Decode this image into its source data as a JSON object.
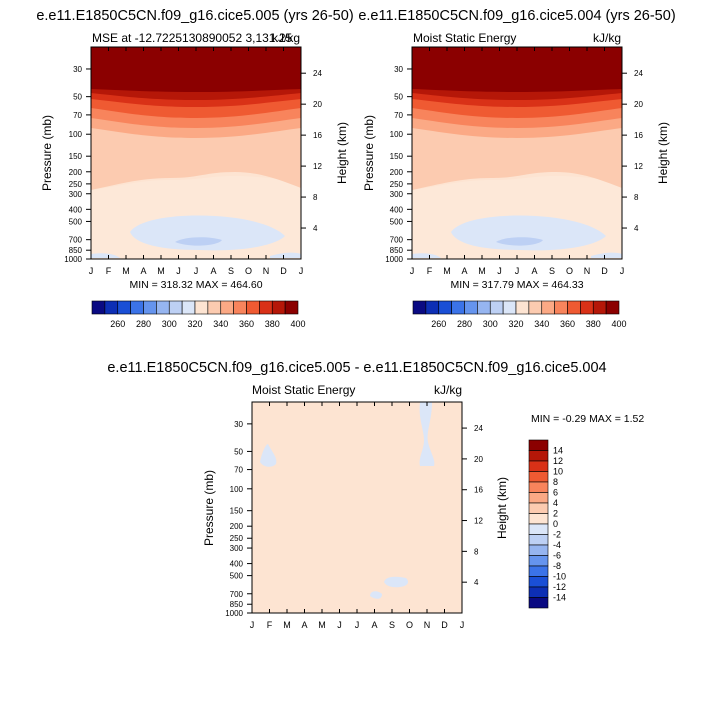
{
  "panels": [
    {
      "title": "e.e11.E1850C5CN.f09_g16.cice5.005 (yrs 26-50)",
      "left_label": "MSE at -12.7225130890052 3,131.25",
      "right_label": "kJ/kg",
      "minmax": "MIN = 318.32 MAX = 464.60"
    },
    {
      "title": "e.e11.E1850C5CN.f09_g16.cice5.004 (yrs 26-50)",
      "left_label": "Moist Static Energy",
      "right_label": "kJ/kg",
      "minmax": "MIN = 317.79 MAX = 464.33"
    },
    {
      "title": "e.e11.E1850C5CN.f09_g16.cice5.005 - e.e11.E1850C5CN.f09_g16.cice5.004",
      "left_label": "Moist Static Energy",
      "right_label": "kJ/kg",
      "minmax": "MIN =  -0.29 MAX =   1.52"
    }
  ],
  "axes": {
    "ylabel_left": "Pressure (mb)",
    "ylabel_right": "Height (km)",
    "months": [
      "J",
      "F",
      "M",
      "A",
      "M",
      "J",
      "J",
      "A",
      "S",
      "O",
      "N",
      "D",
      "J"
    ],
    "pressure_ticks": [
      30,
      50,
      70,
      100,
      150,
      200,
      250,
      300,
      400,
      500,
      700,
      850,
      1000
    ],
    "height_ticks_top": [
      24,
      20,
      16,
      12,
      8,
      4
    ],
    "height_ticks_diff": [
      24,
      20,
      16,
      12,
      8,
      4
    ]
  },
  "colorbar_top": {
    "labels": [
      "260",
      "280",
      "300",
      "320",
      "340",
      "360",
      "380",
      "400"
    ],
    "colors": [
      "#0a0a82",
      "#0d2fb5",
      "#1a4fd6",
      "#3b73e8",
      "#6594ee",
      "#96b5f0",
      "#bdd0f4",
      "#dbe6f8",
      "#fde4d2",
      "#fccbb0",
      "#fba985",
      "#f8845c",
      "#ef5a32",
      "#d93117",
      "#b51708",
      "#8b0000"
    ]
  },
  "colorbar_diff": {
    "labels": [
      "14",
      "12",
      "10",
      "8",
      "6",
      "4",
      "2",
      "0",
      "-2",
      "-4",
      "-6",
      "-8",
      "-10",
      "-12",
      "-14"
    ],
    "colors": [
      "#8b0000",
      "#b51708",
      "#d93117",
      "#ef5a32",
      "#f8845c",
      "#fba985",
      "#fccbb0",
      "#fde4d2",
      "#dbe6f8",
      "#bdd0f4",
      "#96b5f0",
      "#6594ee",
      "#3b73e8",
      "#1a4fd6",
      "#0d2fb5",
      "#0a0a82"
    ]
  },
  "chart_data": [
    {
      "type": "contour",
      "title": "e.e11.E1850C5CN.f09_g16.cice5.005 (yrs 26-50)",
      "variable": "MSE",
      "units": "kJ/kg",
      "x": [
        "J",
        "F",
        "M",
        "A",
        "M",
        "J",
        "J",
        "A",
        "S",
        "O",
        "N",
        "D",
        "J"
      ],
      "ylabel": "Pressure (mb)",
      "ylim": [
        1000,
        20
      ],
      "y_scale": "log",
      "min": 318.32,
      "max": 464.6,
      "levels": [
        260,
        280,
        300,
        320,
        340,
        360,
        380,
        400
      ],
      "bands": [
        {
          "pressure_range": [
            20,
            50
          ],
          "value": 400
        },
        {
          "pressure_range": [
            50,
            60
          ],
          "value": 390
        },
        {
          "pressure_range": [
            60,
            75
          ],
          "value": 380
        },
        {
          "pressure_range": [
            75,
            90
          ],
          "value": 370
        },
        {
          "pressure_range": [
            90,
            110
          ],
          "value": 360
        },
        {
          "pressure_range": [
            110,
            140
          ],
          "value": 350
        },
        {
          "pressure_range": [
            140,
            270
          ],
          "value": 340
        },
        {
          "pressure_range": [
            270,
            1000
          ],
          "value": 330
        }
      ]
    },
    {
      "type": "contour",
      "title": "e.e11.E1850C5CN.f09_g16.cice5.004 (yrs 26-50)",
      "variable": "Moist Static Energy",
      "units": "kJ/kg",
      "x": [
        "J",
        "F",
        "M",
        "A",
        "M",
        "J",
        "J",
        "A",
        "S",
        "O",
        "N",
        "D",
        "J"
      ],
      "ylabel": "Pressure (mb)",
      "ylim": [
        1000,
        20
      ],
      "y_scale": "log",
      "min": 317.79,
      "max": 464.33,
      "levels": [
        260,
        280,
        300,
        320,
        340,
        360,
        380,
        400
      ]
    },
    {
      "type": "contour",
      "title": "e.e11.E1850C5CN.f09_g16.cice5.005 - e.e11.E1850C5CN.f09_g16.cice5.004",
      "variable": "Moist Static Energy",
      "units": "kJ/kg",
      "x": [
        "J",
        "F",
        "M",
        "A",
        "M",
        "J",
        "J",
        "A",
        "S",
        "O",
        "N",
        "D",
        "J"
      ],
      "ylabel": "Pressure (mb)",
      "ylim": [
        1000,
        20
      ],
      "y_scale": "log",
      "min": -0.29,
      "max": 1.52,
      "levels": [
        -14,
        -12,
        -10,
        -8,
        -6,
        -4,
        -2,
        0,
        2,
        4,
        6,
        8,
        10,
        12,
        14
      ]
    }
  ]
}
